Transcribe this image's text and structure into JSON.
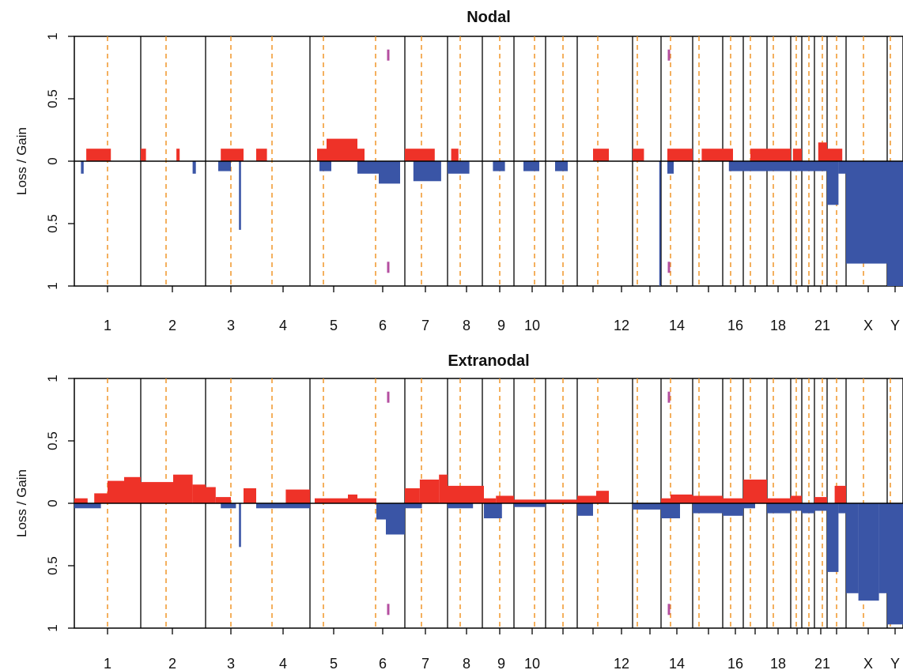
{
  "colors": {
    "gain": "#ee3228",
    "loss": "#3a55a6",
    "centromere": "#f09628",
    "boundary": "#000000",
    "marker": "#b44fa0"
  },
  "chart_data": [
    {
      "type": "bar",
      "title": "Nodal",
      "ylabel": "Loss / Gain",
      "ylim": [
        -1,
        1
      ],
      "y_ticks": [
        {
          "value": 1,
          "label": "1"
        },
        {
          "value": 0.5,
          "label": "0.5"
        },
        {
          "value": 0,
          "label": "0"
        },
        {
          "value": -0.5,
          "label": "0.5"
        },
        {
          "value": -1,
          "label": "1"
        }
      ],
      "x_labels": [
        "1",
        "2",
        "3",
        "4",
        "5",
        "6",
        "7",
        "8",
        "9",
        "10",
        "12",
        "14",
        "16",
        "18",
        "21",
        "X",
        "Y"
      ],
      "gain": [
        {
          "chrom": "1",
          "start": 0.18,
          "end": 0.55,
          "value": 0.1
        },
        {
          "chrom": "2",
          "start": 0.0,
          "end": 0.08,
          "value": 0.1
        },
        {
          "chrom": "2",
          "start": 0.55,
          "end": 0.6,
          "value": 0.1
        },
        {
          "chrom": "3",
          "start": 0.3,
          "end": 0.75,
          "value": 0.1
        },
        {
          "chrom": "4",
          "start": 0.0,
          "end": 0.2,
          "value": 0.1
        },
        {
          "chrom": "5",
          "start": 0.15,
          "end": 0.35,
          "value": 0.1
        },
        {
          "chrom": "5",
          "start": 0.35,
          "end": 1.0,
          "value": 0.18
        },
        {
          "chrom": "6",
          "start": 0.0,
          "end": 0.15,
          "value": 0.1
        },
        {
          "chrom": "7",
          "start": 0.0,
          "end": 0.7,
          "value": 0.1
        },
        {
          "chrom": "8",
          "start": 0.1,
          "end": 0.3,
          "value": 0.1
        },
        {
          "chrom": "12",
          "start": 0.5,
          "end": 1.0,
          "value": 0.1
        },
        {
          "chrom": "13",
          "start": 0.0,
          "end": 0.4,
          "value": 0.1
        },
        {
          "chrom": "14",
          "start": 0.2,
          "end": 1.0,
          "value": 0.1
        },
        {
          "chrom": "15",
          "start": 0.3,
          "end": 1.0,
          "value": 0.1
        },
        {
          "chrom": "16",
          "start": 0.0,
          "end": 0.5,
          "value": 0.1
        },
        {
          "chrom": "17",
          "start": 0.3,
          "end": 1.0,
          "value": 0.1
        },
        {
          "chrom": "18",
          "start": 0.0,
          "end": 1.0,
          "value": 0.1
        },
        {
          "chrom": "19",
          "start": 0.2,
          "end": 1.0,
          "value": 0.1
        },
        {
          "chrom": "21",
          "start": 0.3,
          "end": 1.0,
          "value": 0.15
        },
        {
          "chrom": "22",
          "start": 0.0,
          "end": 0.8,
          "value": 0.1
        }
      ],
      "loss": [
        {
          "chrom": "1",
          "start": 0.1,
          "end": 0.14,
          "value": 0.1
        },
        {
          "chrom": "2",
          "start": 0.8,
          "end": 0.85,
          "value": 0.1
        },
        {
          "chrom": "3",
          "start": 0.25,
          "end": 0.5,
          "value": 0.08
        },
        {
          "chrom": "3",
          "start": 0.66,
          "end": 0.7,
          "value": 0.55
        },
        {
          "chrom": "5",
          "start": 0.2,
          "end": 0.45,
          "value": 0.08
        },
        {
          "chrom": "6",
          "start": 0.0,
          "end": 0.45,
          "value": 0.1
        },
        {
          "chrom": "6",
          "start": 0.45,
          "end": 0.9,
          "value": 0.18
        },
        {
          "chrom": "7",
          "start": 0.2,
          "end": 0.85,
          "value": 0.16
        },
        {
          "chrom": "8",
          "start": 0.0,
          "end": 0.6,
          "value": 0.1
        },
        {
          "chrom": "9",
          "start": 0.3,
          "end": 0.7,
          "value": 0.08
        },
        {
          "chrom": "10",
          "start": 0.3,
          "end": 0.8,
          "value": 0.08
        },
        {
          "chrom": "11",
          "start": 0.3,
          "end": 0.7,
          "value": 0.08
        },
        {
          "chrom": "13",
          "start": 0.94,
          "end": 0.99,
          "value": 1.0
        },
        {
          "chrom": "14",
          "start": 0.2,
          "end": 0.4,
          "value": 0.1
        },
        {
          "chrom": "16",
          "start": 0.3,
          "end": 1.0,
          "value": 0.08
        },
        {
          "chrom": "17",
          "start": 0.0,
          "end": 1.0,
          "value": 0.08
        },
        {
          "chrom": "18",
          "start": 0.0,
          "end": 1.0,
          "value": 0.08
        },
        {
          "chrom": "19",
          "start": 0.0,
          "end": 1.0,
          "value": 0.08
        },
        {
          "chrom": "20",
          "start": 0.0,
          "end": 1.0,
          "value": 0.08
        },
        {
          "chrom": "21",
          "start": 0.0,
          "end": 1.0,
          "value": 0.08
        },
        {
          "chrom": "22",
          "start": 0.0,
          "end": 0.6,
          "value": 0.35
        },
        {
          "chrom": "22",
          "start": 0.6,
          "end": 1.0,
          "value": 0.1
        },
        {
          "chrom": "X",
          "start": 0.0,
          "end": 1.0,
          "value": 0.82
        },
        {
          "chrom": "Y",
          "start": 0.0,
          "end": 1.0,
          "value": 1.0
        }
      ]
    },
    {
      "type": "bar",
      "title": "Extranodal",
      "ylabel": "Loss / Gain",
      "ylim": [
        -1,
        1
      ],
      "y_ticks": [
        {
          "value": 1,
          "label": "1"
        },
        {
          "value": 0.5,
          "label": "0.5"
        },
        {
          "value": 0,
          "label": "0"
        },
        {
          "value": -0.5,
          "label": "0.5"
        },
        {
          "value": -1,
          "label": "1"
        }
      ],
      "x_labels": [
        "1",
        "2",
        "3",
        "4",
        "5",
        "6",
        "7",
        "8",
        "9",
        "10",
        "12",
        "14",
        "16",
        "18",
        "21",
        "X",
        "Y"
      ],
      "gain": [
        {
          "chrom": "1",
          "start": 0.0,
          "end": 0.2,
          "value": 0.04
        },
        {
          "chrom": "1",
          "start": 0.3,
          "end": 0.5,
          "value": 0.08
        },
        {
          "chrom": "1",
          "start": 0.5,
          "end": 0.75,
          "value": 0.18
        },
        {
          "chrom": "1",
          "start": 0.75,
          "end": 1.0,
          "value": 0.21
        },
        {
          "chrom": "2",
          "start": 0.0,
          "end": 0.5,
          "value": 0.17
        },
        {
          "chrom": "2",
          "start": 0.5,
          "end": 0.8,
          "value": 0.23
        },
        {
          "chrom": "2",
          "start": 0.8,
          "end": 1.0,
          "value": 0.15
        },
        {
          "chrom": "3",
          "start": 0.0,
          "end": 0.2,
          "value": 0.13
        },
        {
          "chrom": "3",
          "start": 0.2,
          "end": 0.5,
          "value": 0.05
        },
        {
          "chrom": "3",
          "start": 0.75,
          "end": 1.0,
          "value": 0.12
        },
        {
          "chrom": "4",
          "start": 0.55,
          "end": 1.0,
          "value": 0.11
        },
        {
          "chrom": "5",
          "start": 0.1,
          "end": 0.8,
          "value": 0.04
        },
        {
          "chrom": "5",
          "start": 0.8,
          "end": 1.0,
          "value": 0.07
        },
        {
          "chrom": "6",
          "start": 0.0,
          "end": 0.4,
          "value": 0.04
        },
        {
          "chrom": "7",
          "start": 0.0,
          "end": 0.35,
          "value": 0.12
        },
        {
          "chrom": "7",
          "start": 0.35,
          "end": 0.8,
          "value": 0.19
        },
        {
          "chrom": "7",
          "start": 0.8,
          "end": 1.0,
          "value": 0.23
        },
        {
          "chrom": "8",
          "start": 0.0,
          "end": 1.0,
          "value": 0.14
        },
        {
          "chrom": "9",
          "start": 0.0,
          "end": 0.4,
          "value": 0.04
        },
        {
          "chrom": "9",
          "start": 0.4,
          "end": 1.0,
          "value": 0.06
        },
        {
          "chrom": "10",
          "start": 0.0,
          "end": 1.0,
          "value": 0.03
        },
        {
          "chrom": "11",
          "start": 0.0,
          "end": 1.0,
          "value": 0.03
        },
        {
          "chrom": "12",
          "start": 0.0,
          "end": 0.6,
          "value": 0.06
        },
        {
          "chrom": "12",
          "start": 0.6,
          "end": 1.0,
          "value": 0.1
        },
        {
          "chrom": "14",
          "start": 0.0,
          "end": 0.3,
          "value": 0.04
        },
        {
          "chrom": "14",
          "start": 0.3,
          "end": 1.0,
          "value": 0.07
        },
        {
          "chrom": "15",
          "start": 0.0,
          "end": 1.0,
          "value": 0.06
        },
        {
          "chrom": "16",
          "start": 0.0,
          "end": 1.0,
          "value": 0.04
        },
        {
          "chrom": "17",
          "start": 0.0,
          "end": 1.0,
          "value": 0.19
        },
        {
          "chrom": "18",
          "start": 0.0,
          "end": 1.0,
          "value": 0.04
        },
        {
          "chrom": "19",
          "start": 0.0,
          "end": 1.0,
          "value": 0.06
        },
        {
          "chrom": "21",
          "start": 0.0,
          "end": 1.0,
          "value": 0.05
        },
        {
          "chrom": "22",
          "start": 0.4,
          "end": 1.0,
          "value": 0.14
        }
      ],
      "loss": [
        {
          "chrom": "1",
          "start": 0.0,
          "end": 0.4,
          "value": 0.04
        },
        {
          "chrom": "3",
          "start": 0.66,
          "end": 0.7,
          "value": 0.35
        },
        {
          "chrom": "3",
          "start": 0.3,
          "end": 0.6,
          "value": 0.04
        },
        {
          "chrom": "4",
          "start": 0.0,
          "end": 1.0,
          "value": 0.04
        },
        {
          "chrom": "6",
          "start": 0.4,
          "end": 0.6,
          "value": 0.13
        },
        {
          "chrom": "6",
          "start": 0.6,
          "end": 1.0,
          "value": 0.25
        },
        {
          "chrom": "7",
          "start": 0.0,
          "end": 0.4,
          "value": 0.04
        },
        {
          "chrom": "8",
          "start": 0.0,
          "end": 0.7,
          "value": 0.04
        },
        {
          "chrom": "9",
          "start": 0.0,
          "end": 0.6,
          "value": 0.12
        },
        {
          "chrom": "10",
          "start": 0.0,
          "end": 1.0,
          "value": 0.03
        },
        {
          "chrom": "12",
          "start": 0.0,
          "end": 0.5,
          "value": 0.1
        },
        {
          "chrom": "13",
          "start": 0.0,
          "end": 1.0,
          "value": 0.05
        },
        {
          "chrom": "14",
          "start": 0.0,
          "end": 0.6,
          "value": 0.12
        },
        {
          "chrom": "15",
          "start": 0.0,
          "end": 1.0,
          "value": 0.08
        },
        {
          "chrom": "16",
          "start": 0.0,
          "end": 1.0,
          "value": 0.1
        },
        {
          "chrom": "17",
          "start": 0.0,
          "end": 0.5,
          "value": 0.04
        },
        {
          "chrom": "18",
          "start": 0.0,
          "end": 1.0,
          "value": 0.08
        },
        {
          "chrom": "19",
          "start": 0.0,
          "end": 1.0,
          "value": 0.06
        },
        {
          "chrom": "20",
          "start": 0.0,
          "end": 1.0,
          "value": 0.08
        },
        {
          "chrom": "21",
          "start": 0.0,
          "end": 1.0,
          "value": 0.06
        },
        {
          "chrom": "22",
          "start": 0.0,
          "end": 0.6,
          "value": 0.55
        },
        {
          "chrom": "22",
          "start": 0.6,
          "end": 1.0,
          "value": 0.08
        },
        {
          "chrom": "X",
          "start": 0.0,
          "end": 0.3,
          "value": 0.72
        },
        {
          "chrom": "X",
          "start": 0.3,
          "end": 0.8,
          "value": 0.78
        },
        {
          "chrom": "X",
          "start": 0.8,
          "end": 1.0,
          "value": 0.72
        },
        {
          "chrom": "Y",
          "start": 0.0,
          "end": 1.0,
          "value": 0.97
        }
      ]
    }
  ]
}
